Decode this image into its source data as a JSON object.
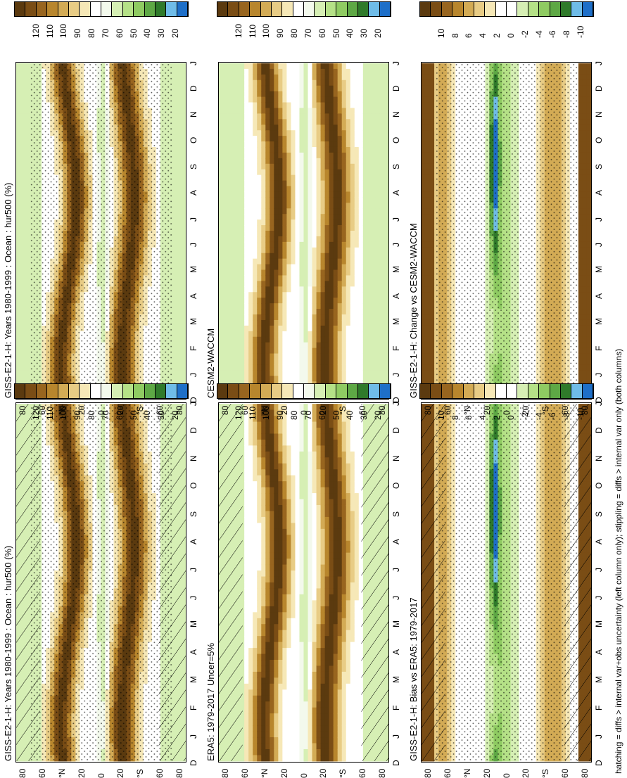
{
  "footer_note": "hatching = diffs > internal var+obs uncertainty (left column only); stippling = diffs > internal var only (both columns)",
  "months": [
    "D",
    "J",
    "F",
    "M",
    "A",
    "M",
    "J",
    "J",
    "A",
    "S",
    "O",
    "N",
    "D",
    "J"
  ],
  "lat_ticks": [
    "80",
    "60",
    "°N",
    "20",
    "0",
    "20",
    "°S",
    "60",
    "80"
  ],
  "colors": {
    "abs_scale": [
      "#5b3a0f",
      "#7a4d15",
      "#98651f",
      "#b8862d",
      "#d3ab55",
      "#e8cc85",
      "#f6e8b7",
      "#ffffff",
      "#f3f9ec",
      "#d6efb4",
      "#b5e187",
      "#8fcb62",
      "#5ea845",
      "#2f7a2a",
      "#6fbce8",
      "#1e6fc8"
    ],
    "diff_scale": [
      "#5b3a0f",
      "#7a4d15",
      "#98651f",
      "#b8862d",
      "#d3ab55",
      "#e8cc85",
      "#f6e8b7",
      "#ffffff",
      "#ffffff",
      "#d6efb4",
      "#b5e187",
      "#8fcb62",
      "#5ea845",
      "#2f7a2a",
      "#6fbce8",
      "#1e6fc8"
    ]
  },
  "abs_scale_labels": [
    "20",
    "30",
    "40",
    "50",
    "60",
    "70",
    "80",
    "90",
    "100",
    "110",
    "120"
  ],
  "diff_scale_labels": [
    "-10",
    "-8",
    "-6",
    "-4",
    "-2",
    "0",
    "2",
    "4",
    "6",
    "8",
    "10"
  ],
  "panels": [
    {
      "id": "top-left",
      "title": "GISS-E2-1-H: Years 1980-1999 : Ocean : hur500 (%)"
    },
    {
      "id": "top-right",
      "title": "GISS-E2-1-H: Years 1980-1999 : Ocean : hur500 (%)"
    },
    {
      "id": "mid-left",
      "title": "ERA5: 1979-2017 Uncer=5%"
    },
    {
      "id": "mid-right",
      "title": "CESM2-WACCM"
    },
    {
      "id": "bottom-left",
      "title": "GISS-E2-1-H: Bias vs ERA5: 1979-2017"
    },
    {
      "id": "bottom-right",
      "title": "GISS-E2-1-H: Change vs CESM2-WACCM"
    }
  ],
  "chart_data": [
    {
      "type": "heatmap",
      "title": "GISS-E2-1-H: Years 1980-1999 : Ocean : hur500 (%)",
      "x": [
        "D",
        "J",
        "F",
        "M",
        "A",
        "M",
        "J",
        "J",
        "A",
        "S",
        "O",
        "N",
        "D",
        "J"
      ],
      "y": [
        "80",
        "60",
        "°N",
        "20",
        "0",
        "20",
        "°S",
        "60",
        "80"
      ],
      "colorbar": [
        "20",
        "30",
        "40",
        "50",
        "60",
        "70",
        "80",
        "90",
        "100",
        "110",
        "120"
      ],
      "hatching": true,
      "stippling": true
    },
    {
      "type": "heatmap",
      "title": "GISS-E2-1-H: Years 1980-1999 : Ocean : hur500 (%)",
      "x": [
        "D",
        "J",
        "F",
        "M",
        "A",
        "M",
        "J",
        "J",
        "A",
        "S",
        "O",
        "N",
        "D",
        "J"
      ],
      "y": [
        "80",
        "60",
        "°N",
        "20",
        "0",
        "20",
        "°S",
        "60",
        "80"
      ],
      "colorbar": [
        "20",
        "30",
        "40",
        "50",
        "60",
        "70",
        "80",
        "90",
        "100",
        "110",
        "120"
      ],
      "hatching": false,
      "stippling": true
    },
    {
      "type": "heatmap",
      "title": "ERA5: 1979-2017 Uncer=5%",
      "x": [
        "D",
        "J",
        "F",
        "M",
        "A",
        "M",
        "J",
        "J",
        "A",
        "S",
        "O",
        "N",
        "D",
        "J"
      ],
      "y": [
        "80",
        "60",
        "°N",
        "20",
        "0",
        "20",
        "°S",
        "60",
        "80"
      ],
      "colorbar": [
        "20",
        "30",
        "40",
        "50",
        "60",
        "70",
        "80",
        "90",
        "100",
        "110",
        "120"
      ],
      "hatching": true,
      "stippling": false
    },
    {
      "type": "heatmap",
      "title": "CESM2-WACCM",
      "x": [
        "D",
        "J",
        "F",
        "M",
        "A",
        "M",
        "J",
        "J",
        "A",
        "S",
        "O",
        "N",
        "D",
        "J"
      ],
      "y": [
        "80",
        "60",
        "°N",
        "20",
        "0",
        "20",
        "°S",
        "60",
        "80"
      ],
      "colorbar": [
        "20",
        "30",
        "40",
        "50",
        "60",
        "70",
        "80",
        "90",
        "100",
        "110",
        "120"
      ],
      "hatching": false,
      "stippling": false
    },
    {
      "type": "heatmap",
      "title": "GISS-E2-1-H: Bias vs ERA5: 1979-2017",
      "x": [
        "D",
        "J",
        "F",
        "M",
        "A",
        "M",
        "J",
        "J",
        "A",
        "S",
        "O",
        "N",
        "D",
        "J"
      ],
      "y": [
        "80",
        "60",
        "°N",
        "20",
        "0",
        "20",
        "°S",
        "60",
        "80"
      ],
      "colorbar": [
        "-10",
        "-8",
        "-6",
        "-4",
        "-2",
        "0",
        "2",
        "4",
        "6",
        "8",
        "10"
      ],
      "hatching": true,
      "stippling": true
    },
    {
      "type": "heatmap",
      "title": "GISS-E2-1-H: Change vs CESM2-WACCM",
      "x": [
        "D",
        "J",
        "F",
        "M",
        "A",
        "M",
        "J",
        "J",
        "A",
        "S",
        "O",
        "N",
        "D",
        "J"
      ],
      "y": [
        "80",
        "60",
        "°N",
        "20",
        "0",
        "20",
        "°S",
        "60",
        "80"
      ],
      "colorbar": [
        "-10",
        "-8",
        "-6",
        "-4",
        "-2",
        "0",
        "2",
        "4",
        "6",
        "8",
        "10"
      ],
      "hatching": false,
      "stippling": true
    }
  ]
}
